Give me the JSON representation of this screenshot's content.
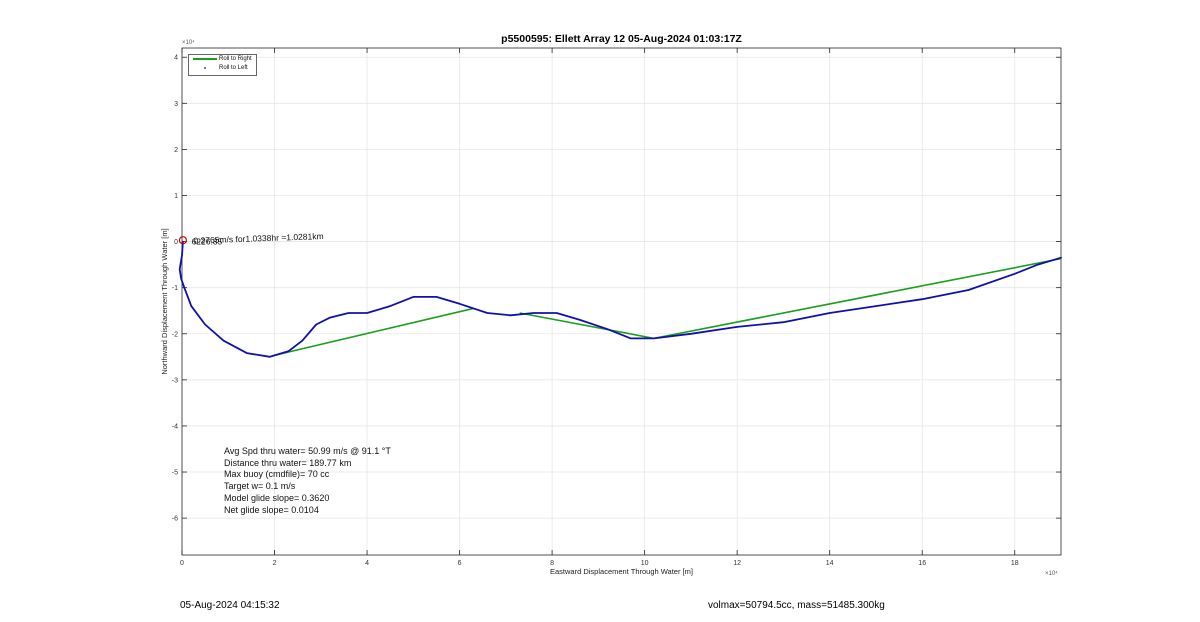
{
  "chart_data": {
    "type": "line",
    "title": "p5500595: Ellett Array 12 05-Aug-2024 01:03:17Z",
    "xlabel": "Eastward Displacement Through Water [m]",
    "ylabel": "Northward Displacement Through Water [m]",
    "x_exponent_label": "×10⁴",
    "y_exponent_label": "×10⁴",
    "xlim": [
      0,
      19
    ],
    "ylim": [
      -6.8,
      4.2
    ],
    "x_ticks": [
      0,
      2,
      4,
      6,
      8,
      10,
      12,
      14,
      16,
      18
    ],
    "x_tick_labels": [
      "0",
      "2",
      "4",
      "6",
      "8",
      "10",
      "12",
      "14",
      "16",
      "18"
    ],
    "y_ticks": [
      4,
      3,
      2,
      1,
      0,
      -1,
      -2,
      -3,
      -4,
      -5,
      -6
    ],
    "y_tick_labels": [
      "4",
      "3",
      "2",
      "1",
      "0",
      "-1",
      "-2",
      "-3",
      "-4",
      "-5",
      "-6"
    ],
    "grid": true,
    "legend_position": "top-left",
    "series": [
      {
        "name": "Roll to Right",
        "color": "#1aa01a",
        "segments": [
          [
            [
              1.95,
              -2.48
            ],
            [
              6.3,
              -1.45
            ]
          ],
          [
            [
              7.3,
              -1.55
            ],
            [
              10.2,
              -2.1
            ]
          ],
          [
            [
              10.2,
              -2.1
            ],
            [
              19.0,
              -0.37
            ]
          ]
        ]
      },
      {
        "name": "Roll to Left",
        "color": "#1010b0",
        "points": [
          [
            0.02,
            0.0
          ],
          [
            0.0,
            -0.3
          ],
          [
            -0.05,
            -0.6
          ],
          [
            -0.02,
            -0.8
          ],
          [
            0.05,
            -1.0
          ],
          [
            0.2,
            -1.4
          ],
          [
            0.5,
            -1.8
          ],
          [
            0.9,
            -2.15
          ],
          [
            1.4,
            -2.42
          ],
          [
            1.9,
            -2.5
          ],
          [
            2.3,
            -2.38
          ],
          [
            2.6,
            -2.15
          ],
          [
            2.9,
            -1.8
          ],
          [
            3.2,
            -1.65
          ],
          [
            3.6,
            -1.55
          ],
          [
            4.0,
            -1.55
          ],
          [
            4.5,
            -1.4
          ],
          [
            5.0,
            -1.2
          ],
          [
            5.5,
            -1.2
          ],
          [
            6.0,
            -1.35
          ],
          [
            6.6,
            -1.55
          ],
          [
            7.1,
            -1.6
          ],
          [
            7.6,
            -1.55
          ],
          [
            8.1,
            -1.55
          ],
          [
            8.6,
            -1.7
          ],
          [
            9.2,
            -1.9
          ],
          [
            9.7,
            -2.1
          ],
          [
            10.2,
            -2.1
          ],
          [
            11.0,
            -2.0
          ],
          [
            12.0,
            -1.85
          ],
          [
            13.0,
            -1.75
          ],
          [
            14.0,
            -1.55
          ],
          [
            15.0,
            -1.4
          ],
          [
            16.0,
            -1.25
          ],
          [
            17.0,
            -1.05
          ],
          [
            18.0,
            -0.7
          ],
          [
            18.5,
            -0.5
          ],
          [
            19.0,
            -0.35
          ]
        ]
      }
    ],
    "start_marker": {
      "x": 0.02,
      "y": 0.03,
      "color": "#cc0000"
    },
    "annotation": {
      "text": "0.2765m/s for1.0338hr =1.0281km",
      "overlap_text": "6226.85",
      "x": 0.25,
      "y": 0.0
    }
  },
  "stats": {
    "line1": "Avg Spd thru water= 50.99 m/s @  91.1 °T",
    "line2": "Distance thru water= 189.77 km",
    "line3": "Max buoy (cmdfile)= 70 cc",
    "line4": "Target w= 0.1 m/s",
    "line5": "Model glide slope= 0.3620",
    "line6": "Net glide slope= 0.0104"
  },
  "footer": {
    "timestamp": "05-Aug-2024 04:15:32",
    "volmass": "volmax=50794.5cc, mass=51485.300kg"
  }
}
